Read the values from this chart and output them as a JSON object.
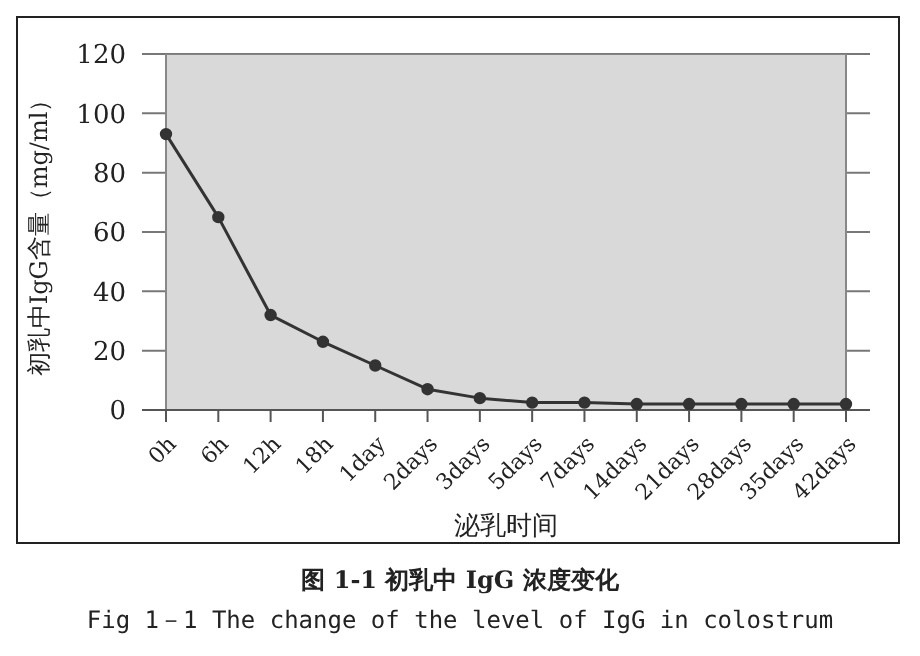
{
  "chart_data": {
    "type": "line",
    "xlabel": "泌乳时间",
    "ylabel": "初乳中IgG含量（mg/ml）",
    "categories": [
      "0h",
      "6h",
      "12h",
      "18h",
      "1day",
      "2days",
      "3days",
      "5days",
      "7days",
      "14days",
      "21days",
      "28days",
      "35days",
      "42days"
    ],
    "series": [
      {
        "color": "#333333",
        "values": [
          93,
          65,
          32,
          23,
          15,
          7,
          4,
          2.5,
          2.5,
          2,
          2,
          2,
          2,
          2
        ]
      }
    ],
    "ylim": [
      0,
      120
    ],
    "yticks": [
      0,
      20,
      40,
      60,
      80,
      100,
      120
    ],
    "grid": "y",
    "marker": "circle",
    "line_style": "solid",
    "annotations": [
      "图 1-1 初乳中 IgG 浓度变化",
      "Fig 1－1 The change of the level of IgG in colostrum"
    ]
  }
}
